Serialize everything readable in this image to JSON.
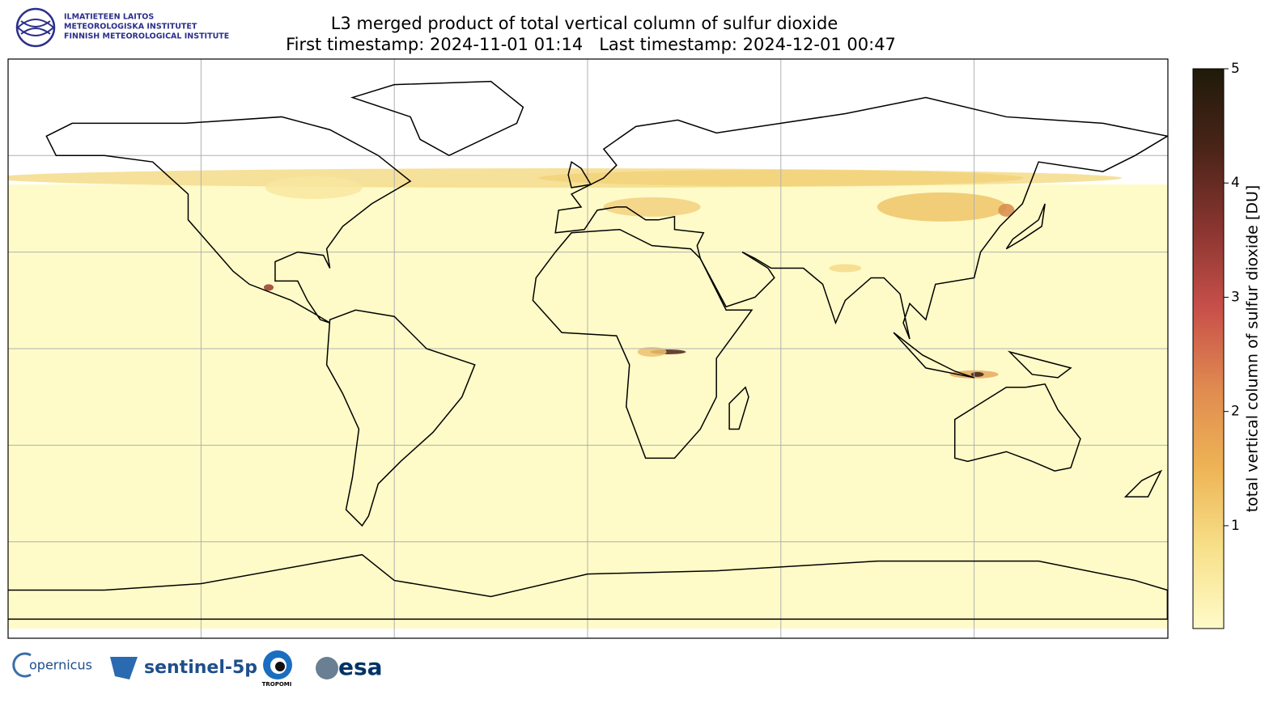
{
  "header": {
    "institute": [
      "ILMATIETEEN LAITOS",
      "METEOROLOGISKA INSTITUTET",
      "FINNISH METEOROLOGICAL INSTITUTE"
    ]
  },
  "title": [
    "L3 merged product of total vertical column of sulfur dioxide",
    "First timestamp: 2024-11-01 01:14   Last timestamp: 2024-12-01 00:47"
  ],
  "colorbar": {
    "label": "total vertical column of sulfur dioxide [DU]",
    "lim": [
      0.1,
      5
    ],
    "ticks": [
      1,
      2,
      3,
      4,
      5
    ],
    "colors": [
      "#fffbc8",
      "#f7e08a",
      "#eeb455",
      "#e08a50",
      "#c8504a",
      "#8a3530",
      "#4a2418",
      "#1f1a0a"
    ]
  },
  "logos": [
    "opernicus",
    "sentinel-5p",
    "TROPOMI",
    "esa"
  ]
}
